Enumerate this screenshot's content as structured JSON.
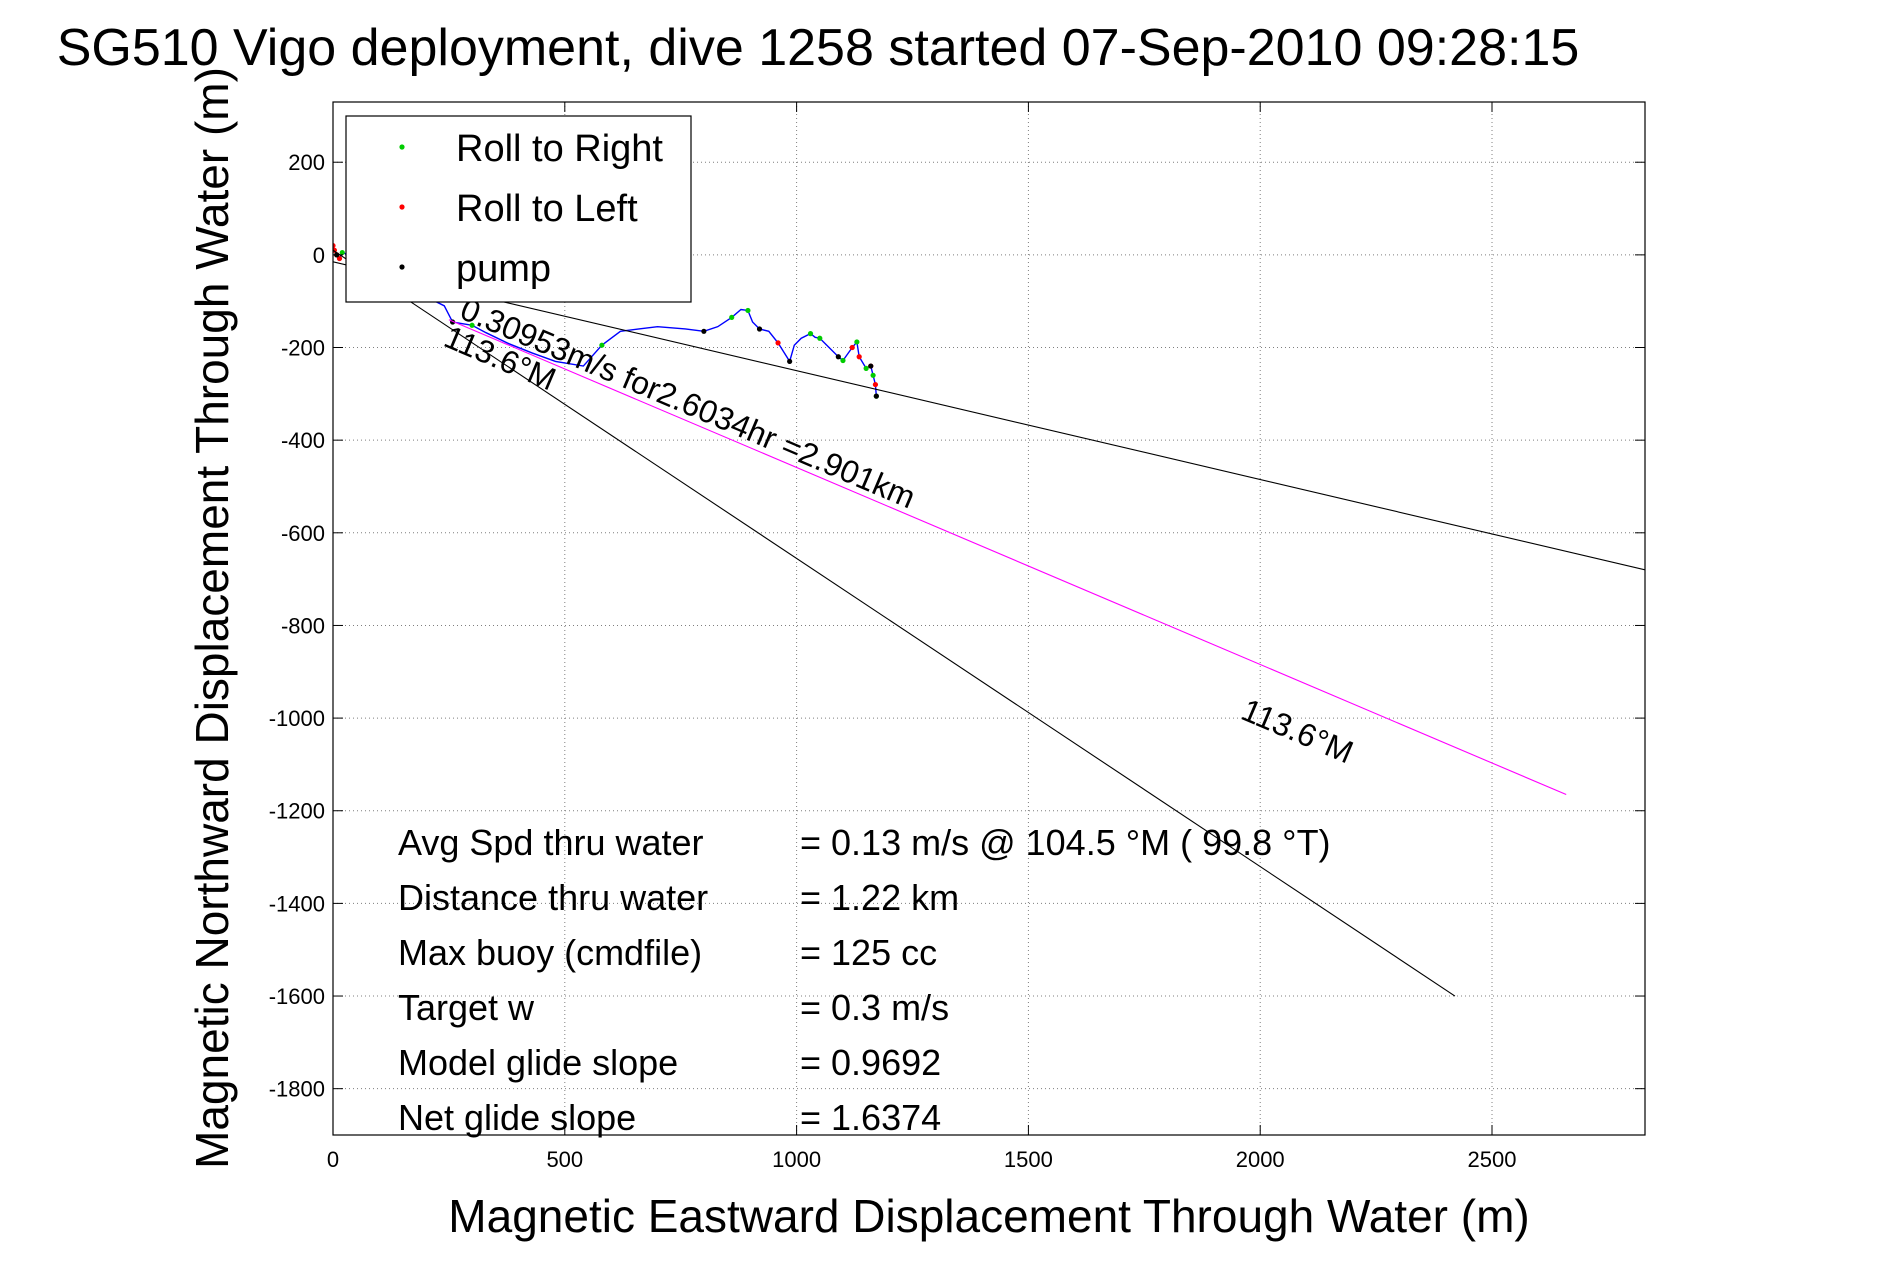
{
  "chart_data": {
    "type": "line",
    "title": "SG510 Vigo deployment, dive 1258 started 07-Sep-2010 09:28:15",
    "xlabel": "Magnetic Eastward Displacement Through Water (m)",
    "ylabel": "Magnetic Northward Displacement Through Water (m)",
    "xlim": [
      0,
      2830
    ],
    "ylim": [
      -1900,
      330
    ],
    "xticks": [
      0,
      500,
      1000,
      1500,
      2000,
      2500
    ],
    "yticks": [
      200,
      0,
      -200,
      -400,
      -600,
      -800,
      -1000,
      -1200,
      -1400,
      -1600,
      -1800
    ],
    "grid": true,
    "legend": {
      "placement": "top-left",
      "entries": [
        {
          "label": "Roll to Right",
          "color": "#00cc00"
        },
        {
          "label": "Roll to Left",
          "color": "#ff0000"
        },
        {
          "label": "pump",
          "color": "#000000"
        }
      ]
    },
    "series": [
      {
        "style": "track",
        "color": "#0000ff",
        "x": [
          0,
          3,
          8,
          14,
          20,
          60,
          120,
          180,
          240,
          258,
          300,
          330,
          380,
          430,
          480,
          540,
          580,
          620,
          660,
          700,
          760,
          800,
          830,
          860,
          880,
          895,
          905,
          920,
          940,
          960,
          985,
          995,
          1010,
          1030,
          1040,
          1050,
          1090,
          1100,
          1120,
          1130,
          1135,
          1150,
          1160,
          1165,
          1170,
          1172
        ],
        "y": [
          20,
          10,
          0,
          -8,
          5,
          -10,
          -40,
          -80,
          -110,
          -145,
          -152,
          -168,
          -192,
          -212,
          -230,
          -240,
          -195,
          -165,
          -160,
          -155,
          -160,
          -165,
          -155,
          -135,
          -118,
          -120,
          -145,
          -160,
          -165,
          -190,
          -230,
          -195,
          -180,
          -170,
          -178,
          -180,
          -220,
          -228,
          -200,
          -188,
          -220,
          -245,
          -240,
          -260,
          -280,
          -305
        ]
      },
      {
        "style": "marker",
        "name": "Roll to Right",
        "color": "#00cc00",
        "x": [
          20,
          300,
          580,
          860,
          895,
          1030,
          1050,
          1100,
          1130,
          1150,
          1165,
          1172
        ],
        "y": [
          5,
          -152,
          -195,
          -135,
          -120,
          -170,
          -180,
          -228,
          -188,
          -245,
          -260,
          -305
        ]
      },
      {
        "style": "marker",
        "name": "Roll to Left",
        "color": "#ff0000",
        "x": [
          0,
          3,
          8,
          14,
          960,
          1120,
          1135,
          1160,
          1170
        ],
        "y": [
          20,
          10,
          0,
          -8,
          -190,
          -200,
          -220,
          -240,
          -280
        ]
      },
      {
        "style": "marker",
        "name": "pump",
        "color": "#000000",
        "x": [
          8,
          258,
          800,
          920,
          985,
          1090,
          1160,
          1172
        ],
        "y": [
          0,
          -145,
          -165,
          -160,
          -230,
          -220,
          -240,
          -305
        ]
      },
      {
        "style": "heading_line",
        "color": "#ff00ff",
        "x": [
          250,
          2660
        ],
        "y": [
          -140,
          -1165
        ]
      },
      {
        "style": "reference_line",
        "color": "#000000",
        "x": [
          0,
          2830
        ],
        "y": [
          -15,
          -680
        ]
      },
      {
        "style": "reference_line",
        "color": "#000000",
        "x": [
          0,
          2420
        ],
        "y": [
          10,
          -1600
        ]
      }
    ],
    "annotations": [
      {
        "text": "0.30953m/s for2.6034hr =2.901km",
        "x": 270,
        "y": -135,
        "rotation_deg": 23
      },
      {
        "text": "113.6°M",
        "x": 235,
        "y": -195,
        "rotation_deg": 23
      },
      {
        "text": "113.6°M",
        "x": 1955,
        "y": -1000,
        "rotation_deg": 23
      }
    ],
    "stats": [
      {
        "label": "Avg Spd thru water",
        "value": "=  0.13 m/s @ 104.5 °M ( 99.8 °T)"
      },
      {
        "label": "Distance thru water",
        "value": "=  1.22 km"
      },
      {
        "label": "Max buoy (cmdfile)",
        "value": "= 125 cc"
      },
      {
        "label": "Target w",
        "value": "= 0.3 m/s"
      },
      {
        "label": "Model glide slope",
        "value": "= 0.9692"
      },
      {
        "label": "Net glide slope",
        "value": "= 1.6374"
      }
    ]
  }
}
